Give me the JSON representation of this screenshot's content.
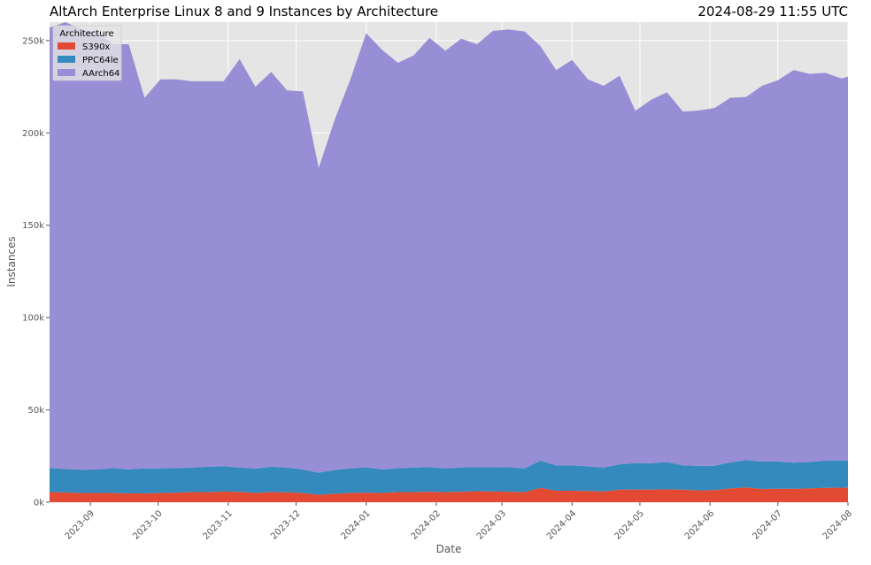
{
  "chart_data": {
    "type": "area",
    "stacked": true,
    "title": "AltArch Enterprise Linux 8 and 9 Instances by Architecture",
    "timestamp": "2024-08-29 11:55 UTC",
    "xlabel": "Date",
    "ylabel": "Instances",
    "xlim": [
      "2023-08-14",
      "2024-08-01"
    ],
    "ylim": [
      0,
      260000
    ],
    "yticks": [
      0,
      50000,
      100000,
      150000,
      200000,
      250000
    ],
    "ytick_labels": [
      "0k",
      "50k",
      "100k",
      "150k",
      "200k",
      "250k"
    ],
    "xticks": [
      "2023-09-01",
      "2023-10-01",
      "2023-11-01",
      "2023-12-01",
      "2024-01-01",
      "2024-02-01",
      "2024-03-01",
      "2024-04-01",
      "2024-05-01",
      "2024-06-01",
      "2024-07-01",
      "2024-08-01"
    ],
    "xtick_labels": [
      "2023-09",
      "2023-10",
      "2023-11",
      "2023-12",
      "2024-01",
      "2024-02",
      "2024-03",
      "2024-04",
      "2024-05",
      "2024-06",
      "2024-07",
      "2024-08"
    ],
    "grid": true,
    "legend": {
      "title": "Architecture",
      "position": "top-left"
    },
    "x": [
      "2023-08-14",
      "2023-08-21",
      "2023-08-28",
      "2023-09-04",
      "2023-09-11",
      "2023-09-18",
      "2023-09-25",
      "2023-10-02",
      "2023-10-09",
      "2023-10-16",
      "2023-10-23",
      "2023-10-30",
      "2023-11-06",
      "2023-11-13",
      "2023-11-20",
      "2023-11-27",
      "2023-12-04",
      "2023-12-11",
      "2023-12-18",
      "2023-12-25",
      "2024-01-01",
      "2024-01-08",
      "2024-01-15",
      "2024-01-22",
      "2024-01-29",
      "2024-02-05",
      "2024-02-12",
      "2024-02-19",
      "2024-02-26",
      "2024-03-04",
      "2024-03-11",
      "2024-03-18",
      "2024-03-25",
      "2024-04-01",
      "2024-04-08",
      "2024-04-15",
      "2024-04-22",
      "2024-04-29",
      "2024-05-06",
      "2024-05-13",
      "2024-05-20",
      "2024-05-27",
      "2024-06-03",
      "2024-06-10",
      "2024-06-17",
      "2024-06-24",
      "2024-07-01",
      "2024-07-08",
      "2024-07-15",
      "2024-07-22",
      "2024-07-29",
      "2024-08-01"
    ],
    "series": [
      {
        "name": "S390x",
        "color": "#E24A33",
        "values": [
          5500,
          5300,
          5000,
          5000,
          5000,
          4800,
          4800,
          5000,
          5200,
          5500,
          5500,
          5800,
          5600,
          5000,
          5500,
          5400,
          5000,
          4000,
          4600,
          5000,
          5200,
          5000,
          5500,
          5500,
          5700,
          5500,
          5700,
          6000,
          5800,
          5700,
          5500,
          7800,
          6200,
          6200,
          6100,
          5800,
          6800,
          6900,
          6800,
          7000,
          6800,
          6400,
          6600,
          7500,
          8000,
          7200,
          7300,
          7300,
          7500,
          7800,
          7900,
          7800
        ]
      },
      {
        "name": "PPC64le",
        "color": "#348ABD",
        "values": [
          13000,
          12700,
          12600,
          12700,
          13500,
          13000,
          13500,
          13300,
          13300,
          13300,
          13700,
          13700,
          13200,
          13200,
          13700,
          13400,
          12700,
          12000,
          12900,
          13300,
          13700,
          12700,
          12900,
          13300,
          13300,
          12900,
          13100,
          13100,
          13200,
          13300,
          12800,
          14700,
          13800,
          13800,
          13300,
          13000,
          13700,
          14300,
          14300,
          14700,
          13200,
          13300,
          13100,
          14100,
          14800,
          14800,
          14700,
          14100,
          14300,
          14700,
          14800,
          14700
        ]
      },
      {
        "name": "AArch64",
        "color": "#988ED5",
        "values": [
          238500,
          242000,
          238400,
          237300,
          229500,
          230200,
          200700,
          210700,
          210500,
          209200,
          208800,
          208500,
          221200,
          206800,
          213800,
          204200,
          204800,
          165000,
          189500,
          210700,
          235100,
          227300,
          219600,
          223200,
          232500,
          226100,
          232200,
          228900,
          236300,
          237000,
          236700,
          224500,
          214000,
          219500,
          209600,
          206700,
          210500,
          190800,
          196900,
          200300,
          191500,
          192400,
          193800,
          197400,
          196700,
          203500,
          206500,
          212600,
          210200,
          210000,
          206800,
          208000
        ]
      }
    ]
  }
}
